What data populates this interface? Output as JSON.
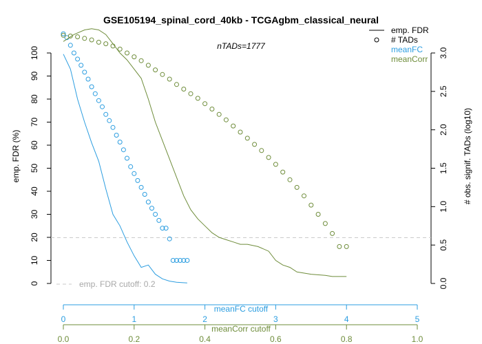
{
  "chart_data": {
    "type": "line",
    "title": "GSE105194_spinal_cord_40kb - TCGAgbm_classical_neural",
    "subtitle": "nTADs=1777",
    "y_left": {
      "label": "emp. FDR (%)",
      "range": [
        0,
        100
      ],
      "ticks": [
        "0",
        "10",
        "20",
        "30",
        "40",
        "50",
        "60",
        "70",
        "80",
        "90",
        "100"
      ]
    },
    "y_right": {
      "label": "# obs. signif. TADs (log10)",
      "range": [
        0,
        3
      ],
      "ticks": [
        "0.0",
        "0.5",
        "1.0",
        "1.5",
        "2.0",
        "2.5",
        "3.0"
      ]
    },
    "x_meanFC": {
      "label": "meanFC cutoff",
      "range": [
        0,
        5
      ],
      "ticks": [
        "0",
        "1",
        "2",
        "3",
        "4",
        "5"
      ],
      "color": "#2b9de0"
    },
    "x_meanCorr": {
      "label": "meanCorr cutoff",
      "range": [
        0,
        1
      ],
      "ticks": [
        "0.0",
        "0.2",
        "0.4",
        "0.6",
        "0.8",
        "1.0"
      ],
      "color": "#6e8c3a"
    },
    "cutoff": {
      "label": "emp. FDR cutoff: 0.2",
      "value": 20,
      "color": "#c8c8c8"
    },
    "legend": {
      "position": "top-right",
      "items": [
        {
          "label": "emp. FDR",
          "marker": "line",
          "color": "#000000"
        },
        {
          "label": "# TADs",
          "marker": "circle",
          "color": "#000000"
        },
        {
          "label": "meanFC",
          "marker": "none",
          "color": "#2b9de0"
        },
        {
          "label": "meanCorr",
          "marker": "none",
          "color": "#6e8c3a"
        }
      ]
    },
    "series": [
      {
        "name": "meanFC",
        "color": "#2b9de0",
        "fdr": {
          "x": [
            0,
            0.1,
            0.2,
            0.3,
            0.4,
            0.5,
            0.6,
            0.7,
            0.8,
            0.9,
            1.0,
            1.1,
            1.2,
            1.3,
            1.4,
            1.5,
            1.6,
            1.75
          ],
          "y": [
            99.5,
            93,
            80,
            70,
            61,
            53,
            41,
            30,
            25,
            18,
            12,
            7,
            8,
            4,
            2,
            1,
            0.5,
            0.2
          ]
        },
        "tads": {
          "x": [
            0,
            0.05,
            0.1,
            0.15,
            0.2,
            0.25,
            0.3,
            0.35,
            0.4,
            0.45,
            0.5,
            0.55,
            0.6,
            0.65,
            0.7,
            0.75,
            0.8,
            0.85,
            0.9,
            0.95,
            1.0,
            1.05,
            1.1,
            1.15,
            1.2,
            1.25,
            1.3,
            1.35,
            1.4,
            1.45,
            1.5,
            1.55,
            1.6,
            1.65,
            1.7,
            1.75
          ],
          "y": [
            3.25,
            3.2,
            3.1,
            3.0,
            2.92,
            2.84,
            2.75,
            2.66,
            2.56,
            2.47,
            2.38,
            2.3,
            2.2,
            2.12,
            2.03,
            1.93,
            1.84,
            1.74,
            1.63,
            1.52,
            1.43,
            1.34,
            1.25,
            1.16,
            1.06,
            0.98,
            0.9,
            0.82,
            0.72,
            0.72,
            0.58,
            0.3,
            0.3,
            0.3,
            0.3,
            0.3
          ]
        }
      },
      {
        "name": "meanCorr",
        "color": "#6e8c3a",
        "fdr": {
          "x": [
            0,
            0.03,
            0.06,
            0.08,
            0.1,
            0.12,
            0.14,
            0.16,
            0.18,
            0.2,
            0.22,
            0.24,
            0.26,
            0.28,
            0.3,
            0.32,
            0.34,
            0.36,
            0.38,
            0.4,
            0.42,
            0.44,
            0.46,
            0.48,
            0.5,
            0.52,
            0.55,
            0.58,
            0.6,
            0.62,
            0.64,
            0.66,
            0.7,
            0.74,
            0.76,
            0.78,
            0.8
          ],
          "y": [
            105,
            108,
            110,
            110.5,
            110,
            108,
            104,
            100,
            97,
            93,
            89,
            80,
            70,
            62,
            54,
            46,
            38,
            32,
            28,
            25,
            22,
            20,
            19,
            18,
            17,
            17,
            16,
            14,
            10,
            8,
            7,
            5,
            4,
            3.5,
            3,
            3,
            3
          ]
        },
        "tads": {
          "x": [
            0,
            0.02,
            0.04,
            0.06,
            0.08,
            0.1,
            0.12,
            0.14,
            0.16,
            0.18,
            0.2,
            0.22,
            0.24,
            0.26,
            0.28,
            0.3,
            0.32,
            0.34,
            0.36,
            0.38,
            0.4,
            0.42,
            0.44,
            0.46,
            0.48,
            0.5,
            0.52,
            0.54,
            0.56,
            0.58,
            0.6,
            0.62,
            0.64,
            0.66,
            0.68,
            0.7,
            0.72,
            0.74,
            0.76,
            0.78,
            0.8
          ],
          "y": [
            3.23,
            3.22,
            3.21,
            3.19,
            3.17,
            3.14,
            3.12,
            3.09,
            3.05,
            3.0,
            2.95,
            2.9,
            2.84,
            2.78,
            2.72,
            2.66,
            2.59,
            2.53,
            2.47,
            2.41,
            2.34,
            2.27,
            2.2,
            2.13,
            2.05,
            1.97,
            1.89,
            1.81,
            1.73,
            1.64,
            1.55,
            1.45,
            1.35,
            1.25,
            1.14,
            1.02,
            0.9,
            0.78,
            0.65,
            0.48,
            0.48
          ]
        }
      }
    ]
  }
}
